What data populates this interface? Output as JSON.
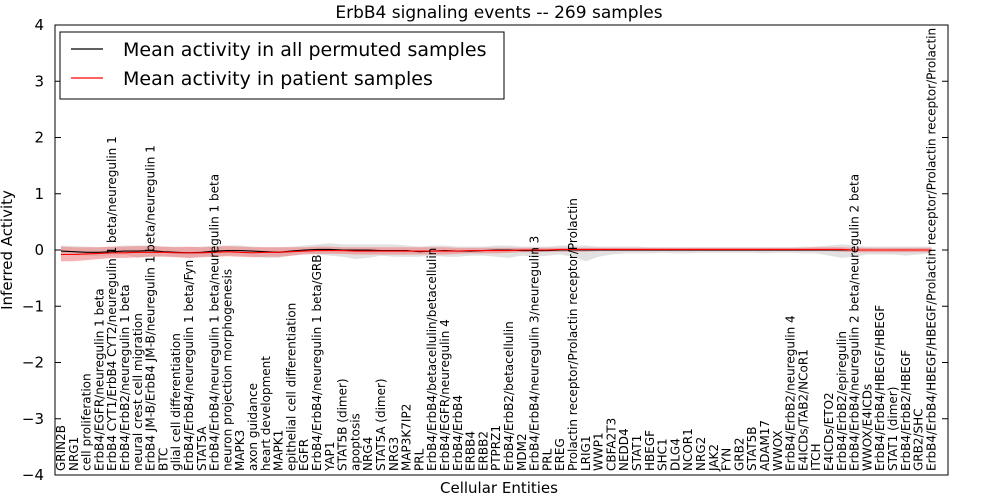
{
  "chart_data": {
    "type": "line",
    "title": "ErbB4 signaling events -- 269 samples",
    "xlabel": "Cellular Entities",
    "ylabel": "Inferred Activity",
    "ylim": [
      -4,
      4
    ],
    "yticks": [
      -4,
      -3,
      -2,
      -1,
      0,
      1,
      2,
      3,
      4
    ],
    "grid": false,
    "legend_position": "top-left",
    "categories": [
      "GRIN2B",
      "NRG1",
      "cell proliferation",
      "ErbB4/EGFR/neuregulin 1 beta",
      "ErbB4 CYT1/ErbB4 CYT2/neuregulin 1 beta/neuregulin 1",
      "ErbB4/ErbB2/neuregulin 1 beta",
      "neural crest cell migration",
      "ErbB4 JM-B/ErbB4 JM-B/neuregulin 1 beta/neuregulin 1",
      "BTC",
      "glial cell differentiation",
      "ErbB4/ErbB4/neuregulin 1 beta/Fyn",
      "STAT5A",
      "ErbB4/ErbB4/neuregulin 1 beta/neuregulin 1 beta",
      "neuron projection morphogenesis",
      "MAPK3",
      "axon guidance",
      "heart development",
      "MAPK1",
      "epithelial cell differentiation",
      "EGFR",
      "ErbB4/ErbB4/neuregulin 1 beta/GRB",
      "YAP1",
      "STAT5B (dimer)",
      "apoptosis",
      "NRG4",
      "STAT5A (dimer)",
      "NRG3",
      "MAP3K7IP2",
      "PRL",
      "ErbB4/ErbB4/betacellulin/betacellulin",
      "ErbB4/EGFR/neuregulin 4",
      "ErbB4/ErbB4",
      "ERBB4",
      "ERBB2",
      "PTPRZ1",
      "ErbB4/ErbB2/betacellulin",
      "MDM2",
      "ErbB4/ErbB4/neuregulin 3/neuregulin 3",
      "PRL",
      "EREG",
      "Prolactin receptor/Prolactin receptor/Prolactin",
      "LRIG1",
      "WWP1",
      "CBFA2T3",
      "NEDD4",
      "STAT1",
      "HBEGF",
      "SHC1",
      "DLG4",
      "NCOR1",
      "NRG2",
      "JAK2",
      "FYN",
      "GRB2",
      "STAT5B",
      "ADAM17",
      "WWOX",
      "ErbB4/ErbB2/neuregulin 4",
      "E4ICDs/TAB2/NCoR1",
      "ITCH",
      "E4ICDs/ETO2",
      "ErbB4/ErbB2/epiregulin",
      "ErbB4/ErbB4/neuregulin 2 beta/neuregulin 2 beta",
      "WWOX/E4ICDs",
      "ErbB4/ErbB4/HBEGF/HBEGF",
      "STAT1 (dimer)",
      "ErbB4/ErbB2/HBEGF",
      "GRB2/SHC",
      "ErbB4/ErbB4/HBEGF/HBEGF/Prolactin receptor/Prolactin receptor/Prolactin"
    ],
    "series": [
      {
        "name": "Mean activity in all permuted samples",
        "color": "#000000",
        "values": [
          -0.02,
          -0.03,
          -0.04,
          -0.04,
          -0.03,
          -0.02,
          -0.02,
          -0.01,
          -0.03,
          -0.04,
          -0.05,
          -0.04,
          -0.02,
          -0.01,
          -0.01,
          -0.02,
          -0.03,
          -0.04,
          -0.02,
          0.0,
          0.01,
          0.01,
          0.0,
          0.0,
          0.0,
          -0.01,
          -0.01,
          -0.01,
          -0.03,
          -0.02,
          -0.01,
          -0.02,
          -0.02,
          -0.01,
          0.0,
          0.0,
          -0.01,
          -0.01,
          -0.01,
          0.0,
          0.0,
          0.0,
          0.0,
          0.0,
          0.0,
          0.0,
          0.0,
          0.0,
          0.0,
          0.0,
          0.0,
          0.0,
          0.0,
          0.0,
          0.0,
          0.0,
          0.0,
          0.0,
          0.0,
          0.0,
          0.0,
          0.0,
          0.0,
          0.0,
          0.0,
          0.0,
          0.0,
          0.0,
          0.0
        ],
        "band_low": [
          -0.08,
          -0.09,
          -0.1,
          -0.11,
          -0.1,
          -0.08,
          -0.14,
          -0.12,
          -0.1,
          -0.12,
          -0.14,
          -0.12,
          -0.1,
          -0.1,
          -0.1,
          -0.12,
          -0.14,
          -0.14,
          -0.1,
          -0.06,
          -0.08,
          -0.1,
          -0.12,
          -0.16,
          -0.14,
          -0.1,
          -0.12,
          -0.12,
          -0.12,
          -0.1,
          -0.12,
          -0.12,
          -0.1,
          -0.1,
          -0.12,
          -0.14,
          -0.1,
          -0.12,
          -0.1,
          -0.08,
          -0.12,
          -0.2,
          -0.12,
          -0.08,
          -0.06,
          -0.06,
          -0.06,
          -0.05,
          -0.06,
          -0.06,
          -0.05,
          -0.05,
          -0.05,
          -0.05,
          -0.05,
          -0.06,
          -0.05,
          -0.05,
          -0.06,
          -0.06,
          -0.1,
          -0.14,
          -0.12,
          -0.08,
          -0.08,
          -0.08,
          -0.1,
          -0.08,
          -0.06
        ],
        "band_high": [
          0.08,
          0.07,
          0.06,
          0.05,
          0.06,
          0.08,
          0.08,
          0.08,
          0.06,
          0.06,
          0.05,
          0.06,
          0.08,
          0.08,
          0.08,
          0.06,
          0.05,
          0.05,
          0.06,
          0.08,
          0.1,
          0.12,
          0.1,
          0.1,
          0.1,
          0.1,
          0.1,
          0.08,
          0.06,
          0.08,
          0.08,
          0.06,
          0.06,
          0.06,
          0.08,
          0.08,
          0.06,
          0.06,
          0.06,
          0.08,
          0.08,
          0.08,
          0.06,
          0.06,
          0.06,
          0.06,
          0.05,
          0.05,
          0.05,
          0.05,
          0.05,
          0.05,
          0.05,
          0.05,
          0.05,
          0.05,
          0.05,
          0.05,
          0.06,
          0.06,
          0.08,
          0.1,
          0.08,
          0.06,
          0.06,
          0.06,
          0.06,
          0.06,
          0.06
        ]
      },
      {
        "name": "Mean activity in patient samples",
        "color": "#ff0000",
        "values": [
          -0.08,
          -0.08,
          -0.07,
          -0.06,
          -0.05,
          -0.05,
          -0.04,
          -0.04,
          -0.04,
          -0.05,
          -0.05,
          -0.05,
          -0.04,
          -0.03,
          -0.04,
          -0.05,
          -0.04,
          -0.04,
          -0.03,
          -0.02,
          -0.01,
          -0.01,
          -0.01,
          -0.02,
          -0.02,
          -0.02,
          -0.02,
          -0.02,
          -0.02,
          -0.02,
          -0.02,
          -0.02,
          -0.01,
          -0.01,
          -0.01,
          -0.01,
          0.0,
          0.0,
          0.0,
          0.01,
          0.01,
          0.01,
          0.01,
          0.01,
          0.01,
          0.01,
          0.01,
          0.01,
          0.01,
          0.01,
          0.01,
          0.01,
          0.01,
          0.01,
          0.01,
          0.01,
          0.01,
          0.01,
          0.01,
          0.01,
          0.01,
          0.01,
          0.0,
          0.0,
          0.0,
          0.0,
          0.0,
          0.0,
          0.0
        ],
        "band_low": [
          -0.2,
          -0.2,
          -0.18,
          -0.16,
          -0.14,
          -0.14,
          -0.13,
          -0.12,
          -0.12,
          -0.13,
          -0.14,
          -0.13,
          -0.12,
          -0.11,
          -0.12,
          -0.13,
          -0.12,
          -0.12,
          -0.1,
          -0.08,
          -0.07,
          -0.07,
          -0.07,
          -0.08,
          -0.08,
          -0.08,
          -0.08,
          -0.08,
          -0.08,
          -0.08,
          -0.08,
          -0.07,
          -0.06,
          -0.06,
          -0.06,
          -0.05,
          -0.04,
          -0.04,
          -0.03,
          -0.03,
          -0.03,
          -0.03,
          -0.02,
          -0.02,
          -0.02,
          -0.02,
          -0.02,
          -0.02,
          -0.02,
          -0.02,
          -0.02,
          -0.02,
          -0.02,
          -0.02,
          -0.02,
          -0.02,
          -0.02,
          -0.02,
          -0.02,
          -0.02,
          -0.02,
          -0.03,
          -0.04,
          -0.04,
          -0.04,
          -0.04,
          -0.04,
          -0.04,
          -0.04
        ],
        "band_high": [
          0.06,
          0.05,
          0.05,
          0.05,
          0.06,
          0.06,
          0.07,
          0.07,
          0.06,
          0.05,
          0.06,
          0.05,
          0.06,
          0.07,
          0.06,
          0.05,
          0.05,
          0.05,
          0.05,
          0.05,
          0.06,
          0.06,
          0.05,
          0.05,
          0.05,
          0.05,
          0.05,
          0.05,
          0.05,
          0.05,
          0.05,
          0.04,
          0.04,
          0.04,
          0.04,
          0.04,
          0.04,
          0.04,
          0.04,
          0.04,
          0.04,
          0.04,
          0.04,
          0.04,
          0.04,
          0.04,
          0.04,
          0.04,
          0.04,
          0.04,
          0.04,
          0.04,
          0.04,
          0.04,
          0.04,
          0.04,
          0.04,
          0.04,
          0.04,
          0.05,
          0.05,
          0.05,
          0.04,
          0.04,
          0.04,
          0.04,
          0.04,
          0.04,
          0.04
        ]
      }
    ],
    "band_colors": {
      "permuted": "#c8c8c8",
      "patient": "#f08080"
    }
  }
}
